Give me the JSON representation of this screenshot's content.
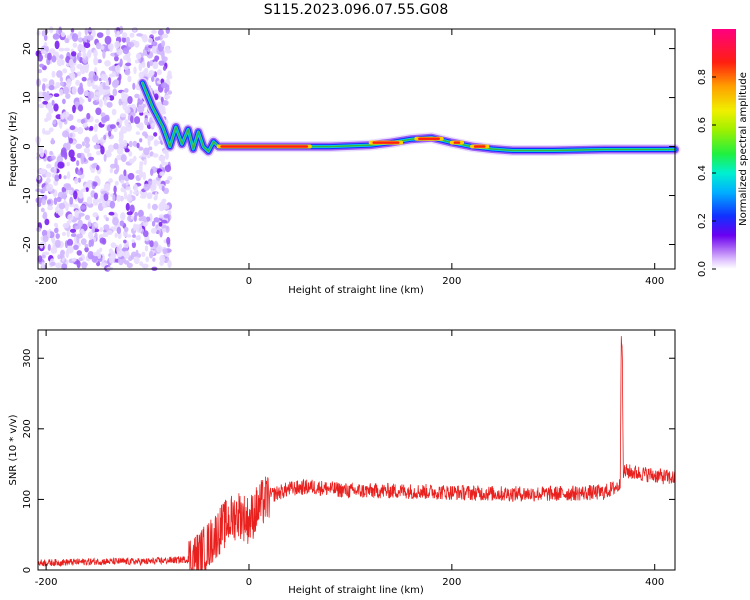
{
  "title": "S115.2023.096.07.55.G08",
  "colors": {
    "snr_line": "#e8201e",
    "ridge": "#3cb43c",
    "scatter": "#8c3cf0"
  },
  "chart_data": [
    {
      "type": "heatmap",
      "xlabel": "Height of straight line (km)",
      "ylabel": "Frequency (Hz)",
      "xlim": [
        -208,
        420
      ],
      "ylim": [
        -25,
        24
      ],
      "xticks": [
        -200,
        0,
        200,
        400
      ],
      "yticks": [
        20,
        10,
        0,
        -10,
        -20
      ],
      "colorbar": {
        "label": "Normalized spectral amplitude",
        "range": [
          0,
          1
        ],
        "ticks": [
          "0.0",
          "0.2",
          "0.4",
          "0.6",
          "0.8"
        ],
        "colormap": "rainbow"
      },
      "noise_region_x": [
        -208,
        -78
      ],
      "ridge": {
        "x": [
          -105,
          -95,
          -85,
          -78,
          -72,
          -66,
          -60,
          -55,
          -50,
          -45,
          -40,
          -35,
          -30,
          0,
          40,
          80,
          120,
          140,
          160,
          180,
          200,
          220,
          240,
          260,
          300,
          350,
          420
        ],
        "freq": [
          13,
          8,
          4,
          0,
          4,
          0.5,
          3.5,
          -0.5,
          3,
          0,
          -1,
          1,
          0,
          0,
          0,
          0,
          0.3,
          0.8,
          1.5,
          1.8,
          0.8,
          0,
          -0.5,
          -0.8,
          -0.8,
          -0.6,
          -0.6
        ]
      },
      "peak_segments": [
        {
          "x": [
            -30,
            60
          ],
          "freq": 0
        },
        {
          "x": [
            120,
            150
          ],
          "freq": 0.8
        },
        {
          "x": [
            165,
            190
          ],
          "freq": 1.6
        },
        {
          "x": [
            200,
            210
          ],
          "freq": 0.8
        },
        {
          "x": [
            220,
            235
          ],
          "freq": 0
        }
      ]
    },
    {
      "type": "line",
      "xlabel": "Height of straight line (km)",
      "ylabel": "SNR (10 * v/v)",
      "xlim": [
        -208,
        420
      ],
      "ylim": [
        0,
        340
      ],
      "xticks": [
        -200,
        0,
        200,
        400
      ],
      "yticks": [
        0,
        100,
        200,
        300
      ],
      "series": [
        {
          "x": [
            -208,
            -150,
            -100,
            -60,
            -50,
            -40,
            -30,
            -20,
            -10,
            0,
            10,
            20,
            40,
            60,
            80,
            100,
            150,
            200,
            250,
            300,
            350,
            366,
            367,
            368,
            369,
            370,
            380,
            420
          ],
          "y": [
            10,
            12,
            12,
            15,
            20,
            35,
            55,
            70,
            80,
            70,
            90,
            105,
            115,
            118,
            115,
            112,
            112,
            110,
            108,
            108,
            110,
            120,
            330,
            320,
            130,
            140,
            138,
            130
          ]
        }
      ]
    }
  ]
}
